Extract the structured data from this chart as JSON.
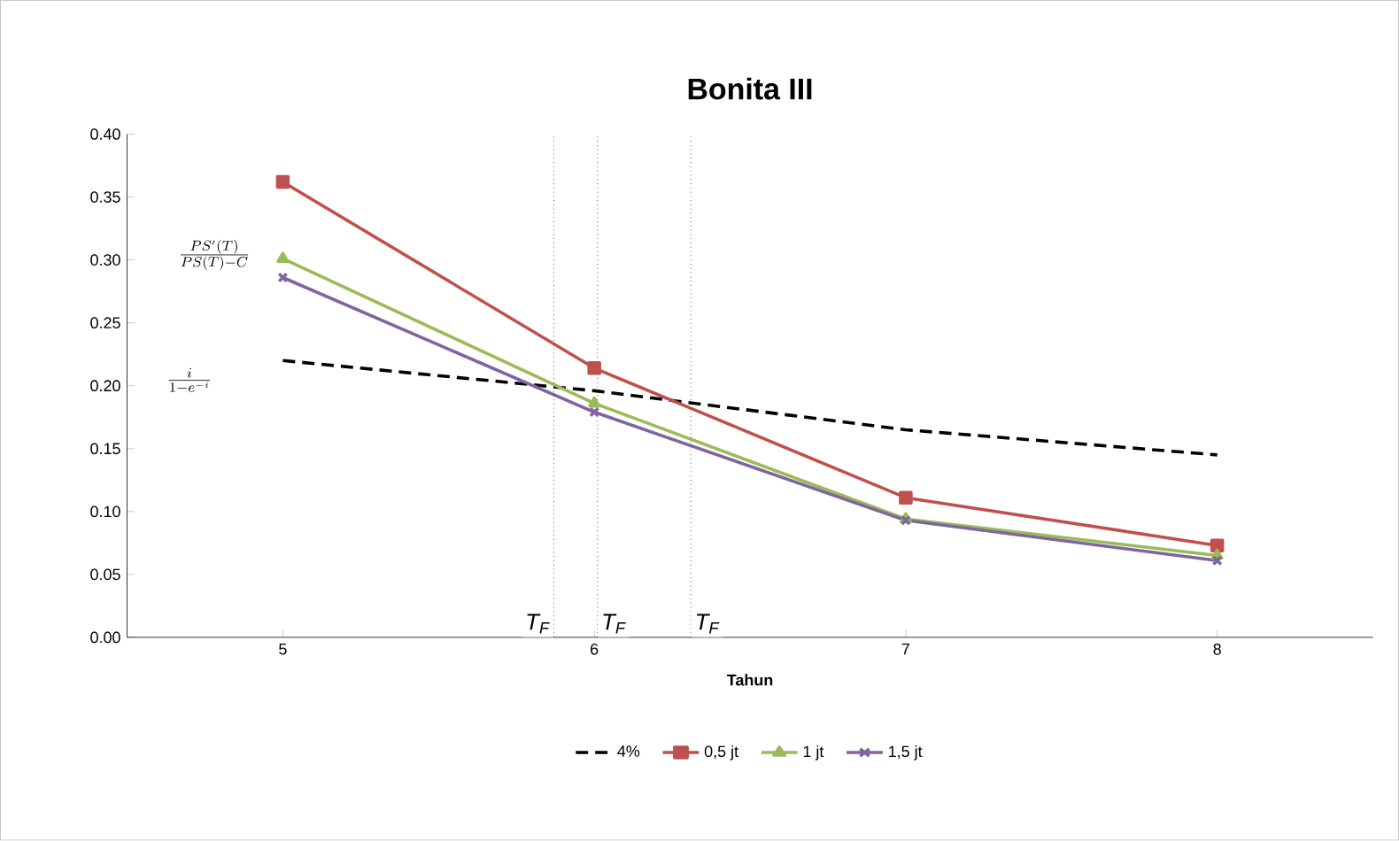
{
  "chart_data": {
    "type": "line",
    "title": "Bonita III",
    "xlabel": "Tahun",
    "x": [
      5,
      6,
      7,
      8
    ],
    "xlim": [
      4.5,
      8.5
    ],
    "xticks": [
      5,
      6,
      7,
      8
    ],
    "ylim": [
      0,
      0.4
    ],
    "yticks": [
      {
        "value": 0,
        "label": "0.00"
      },
      {
        "value": 0.05,
        "label": "0.05"
      },
      {
        "value": 0.1,
        "label": "0.10"
      },
      {
        "value": 0.15,
        "label": "0.15"
      },
      {
        "value": 0.2,
        "label": "0.20"
      },
      {
        "value": 0.25,
        "label": "0.25"
      },
      {
        "value": 0.3,
        "label": "0.30"
      },
      {
        "value": 0.35,
        "label": "0.35"
      },
      {
        "value": 0.4,
        "label": "0.40"
      }
    ],
    "series": [
      {
        "name": "4%",
        "color": "#000000",
        "values": [
          0.22,
          0.196,
          0.165,
          0.145
        ],
        "marker": "none",
        "line_style": "dashed"
      },
      {
        "name": "0,5 jt",
        "color": "#c0504d",
        "values": [
          0.362,
          0.214,
          0.111,
          0.073
        ],
        "marker": "square",
        "line_style": "solid"
      },
      {
        "name": "1 jt",
        "color": "#9bbb59",
        "values": [
          0.301,
          0.186,
          0.094,
          0.065
        ],
        "marker": "triangle",
        "line_style": "solid"
      },
      {
        "name": "1,5 jt",
        "color": "#8064a2",
        "values": [
          0.286,
          0.179,
          0.093,
          0.061
        ],
        "marker": "cross",
        "line_style": "solid"
      }
    ],
    "ref_lines": [
      {
        "axis": "x",
        "value": 5.87,
        "label": "T$_{F}$",
        "line_style": "dotted"
      },
      {
        "axis": "x",
        "value": 6.01,
        "label": "T$_{F}$",
        "line_style": "dotted"
      },
      {
        "axis": "x",
        "value": 6.31,
        "label": "T$_{F}$",
        "line_style": "dotted"
      }
    ],
    "annotations": [
      "\\frac{PS'(T)}{PS(T)-C}",
      "\\frac{i}{1-e^{-i}}"
    ],
    "grid": false,
    "legend": "bottom"
  }
}
